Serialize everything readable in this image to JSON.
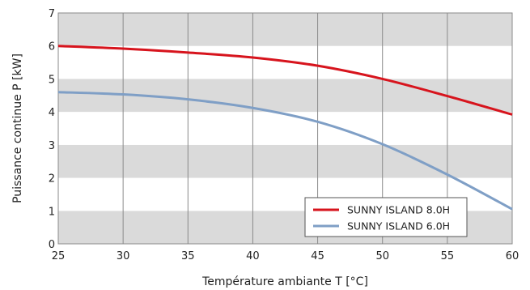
{
  "chart_data": {
    "type": "line",
    "title": "",
    "xlabel": "Température ambiante T [°C]",
    "ylabel": "Puissance continue P [kW]",
    "xlim": [
      25,
      60
    ],
    "ylim": [
      0,
      7
    ],
    "x_ticks": [
      "25",
      "30",
      "35",
      "40",
      "45",
      "50",
      "55",
      "60"
    ],
    "y_ticks": [
      "0",
      "1",
      "2",
      "3",
      "4",
      "5",
      "6",
      "7"
    ],
    "grid": "vertical lines at each x tick; alternating gray/white horizontal bands per 1 kW",
    "legend_position": "bottom-right",
    "series": [
      {
        "name": "SUNNY ISLAND 8.0H",
        "color": "#d7141d",
        "x": [
          25,
          30,
          35,
          40,
          45,
          50,
          55,
          60
        ],
        "y": [
          6.0,
          5.92,
          5.8,
          5.65,
          5.4,
          5.0,
          4.48,
          3.92
        ]
      },
      {
        "name": "SUNNY ISLAND 6.0H",
        "color": "#7f9fc6",
        "x": [
          25,
          30,
          35,
          40,
          45,
          50,
          55,
          60
        ],
        "y": [
          4.6,
          4.53,
          4.38,
          4.12,
          3.7,
          3.02,
          2.1,
          1.05
        ]
      }
    ]
  },
  "colors": {
    "band_gray": "#dadada",
    "band_white": "#ffffff",
    "grid_line": "#8a8a8a",
    "frame": "#8a8a8a"
  }
}
